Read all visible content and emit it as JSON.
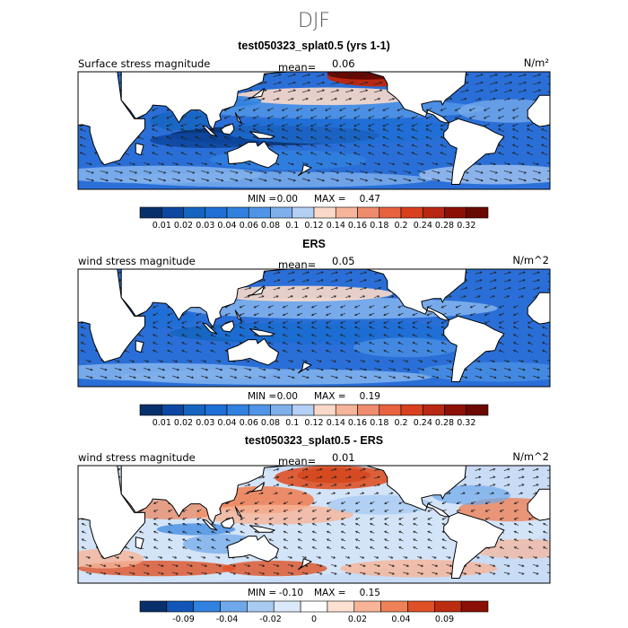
{
  "season": "DJF",
  "panels": [
    {
      "title": "test050323_splat0.5 (yrs 1-1)",
      "label": "Surface stress magnitude",
      "mean_label": "mean=",
      "mean": "0.06",
      "units": "N/m²",
      "min_label": "MIN =",
      "min": "0.00",
      "max_label": "MAX =",
      "max": "0.47",
      "palette": "seq",
      "colorbar_ticks": [
        "0.01",
        "0.02",
        "0.03",
        "0.04",
        "0.06",
        "0.08",
        "0.1",
        "0.12",
        "0.14",
        "0.16",
        "0.18",
        "0.2",
        "0.24",
        "0.28",
        "0.32"
      ]
    },
    {
      "title": "ERS",
      "label": "wind stress magnitude",
      "mean_label": "mean=",
      "mean": "0.05",
      "units": "N/m^2",
      "min_label": "MIN =",
      "min": "0.00",
      "max_label": "MAX =",
      "max": "0.19",
      "palette": "seq",
      "colorbar_ticks": [
        "0.01",
        "0.02",
        "0.03",
        "0.04",
        "0.06",
        "0.08",
        "0.1",
        "0.12",
        "0.14",
        "0.16",
        "0.18",
        "0.2",
        "0.24",
        "0.28",
        "0.32"
      ]
    },
    {
      "title": "test050323_splat0.5 - ERS",
      "label": "wind stress magnitude",
      "mean_label": "mean=",
      "mean": "0.01",
      "units": "N/m^2",
      "min_label": "MIN =",
      "min": "-0.10",
      "max_label": "MAX =",
      "max": "0.15",
      "palette": "div",
      "colorbar_ticks": [
        "-0.09",
        "-0.04",
        "-0.02",
        "0",
        "0.02",
        "0.04",
        "0.09"
      ]
    }
  ],
  "chart_data": [
    {
      "type": "heatmap",
      "title": "test050323_splat0.5 (yrs 1-1)",
      "variable": "Surface stress magnitude",
      "units": "N/m²",
      "mean": 0.06,
      "min": 0.0,
      "max": 0.47,
      "xlim": [
        0,
        360
      ],
      "ylim": [
        -60,
        60
      ],
      "levels": [
        0.01,
        0.02,
        0.03,
        0.04,
        0.06,
        0.08,
        0.1,
        0.12,
        0.14,
        0.16,
        0.18,
        0.2,
        0.24,
        0.28,
        0.32
      ]
    },
    {
      "type": "heatmap",
      "title": "ERS",
      "variable": "wind stress magnitude",
      "units": "N/m^2",
      "mean": 0.05,
      "min": 0.0,
      "max": 0.19,
      "xlim": [
        0,
        360
      ],
      "ylim": [
        -60,
        60
      ],
      "levels": [
        0.01,
        0.02,
        0.03,
        0.04,
        0.06,
        0.08,
        0.1,
        0.12,
        0.14,
        0.16,
        0.18,
        0.2,
        0.24,
        0.28,
        0.32
      ]
    },
    {
      "type": "heatmap",
      "title": "test050323_splat0.5 - ERS",
      "variable": "wind stress magnitude",
      "units": "N/m^2",
      "mean": 0.01,
      "min": -0.1,
      "max": 0.15,
      "xlim": [
        0,
        360
      ],
      "ylim": [
        -60,
        60
      ],
      "levels": [
        -0.09,
        -0.04,
        -0.02,
        0,
        0.02,
        0.04,
        0.09
      ]
    }
  ],
  "colors": {
    "seq": [
      "#08306b",
      "#0d47a1",
      "#1565c0",
      "#1e6fd6",
      "#3182e0",
      "#4f94e6",
      "#7fb0ec",
      "#b3d0f4",
      "#fbd9c9",
      "#f6b49b",
      "#f08c6e",
      "#e8623f",
      "#d8401f",
      "#b82812",
      "#8c1005",
      "#6a0802"
    ],
    "div": [
      "#08306b",
      "#1256b8",
      "#3182e0",
      "#6ea8ea",
      "#a9cbf2",
      "#dbe9fa",
      "#ffffff",
      "#fde1d3",
      "#f7b497",
      "#ee8157",
      "#de5126",
      "#bc2c10",
      "#8a0f04"
    ]
  }
}
